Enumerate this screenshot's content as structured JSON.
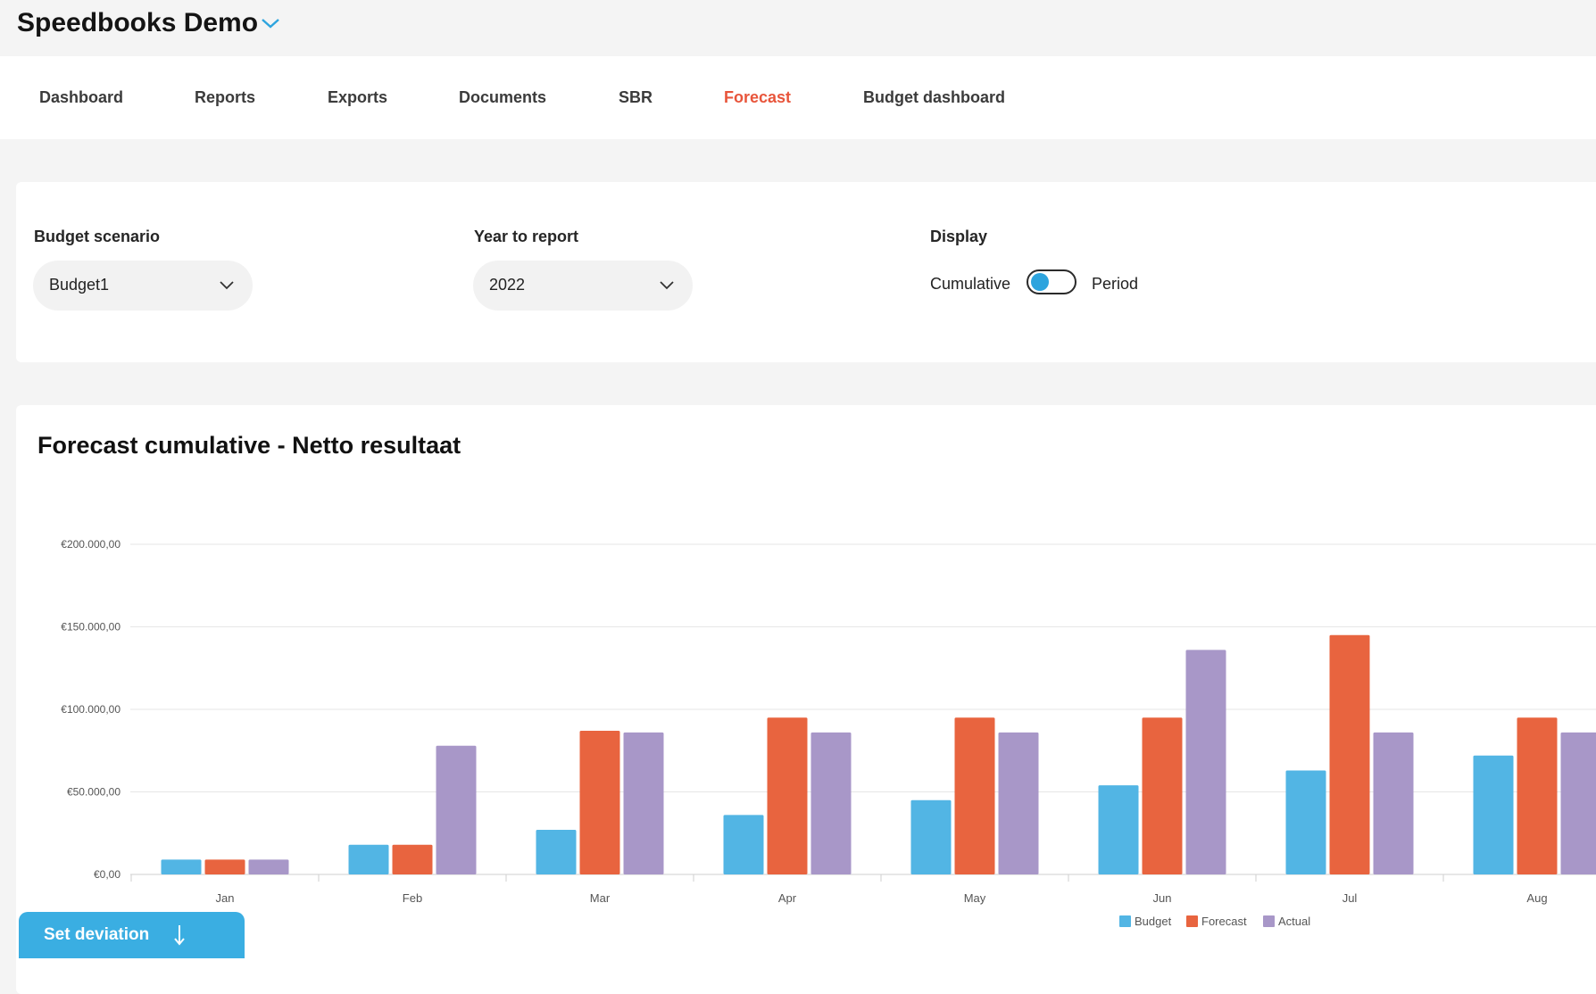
{
  "app": {
    "title": "Speedbooks Demo"
  },
  "nav": {
    "items": [
      {
        "label": "Dashboard"
      },
      {
        "label": "Reports"
      },
      {
        "label": "Exports"
      },
      {
        "label": "Documents"
      },
      {
        "label": "SBR"
      },
      {
        "label": "Forecast",
        "active": true
      },
      {
        "label": "Budget dashboard"
      }
    ]
  },
  "filters": {
    "budget_scenario": {
      "label": "Budget scenario",
      "value": "Budget1"
    },
    "year": {
      "label": "Year to report",
      "value": "2022"
    },
    "display": {
      "label": "Display",
      "left": "Cumulative",
      "right": "Period",
      "selected": "Cumulative"
    }
  },
  "chart": {
    "title": "Forecast cumulative - Netto resultaat"
  },
  "chart_data": {
    "type": "bar",
    "categories": [
      "Jan",
      "Feb",
      "Mar",
      "Apr",
      "May",
      "Jun",
      "Jul",
      "Aug"
    ],
    "series": [
      {
        "name": "Budget",
        "color": "#52b5e4",
        "values": [
          9000,
          18000,
          27000,
          36000,
          45000,
          54000,
          63000,
          72000
        ]
      },
      {
        "name": "Forecast",
        "color": "#e8643f",
        "values": [
          9000,
          18000,
          87000,
          95000,
          95000,
          95000,
          145000,
          95000
        ]
      },
      {
        "name": "Actual",
        "color": "#a897c8",
        "values": [
          9000,
          78000,
          86000,
          86000,
          86000,
          136000,
          86000,
          86000
        ]
      }
    ],
    "ylim": [
      0,
      200000
    ],
    "yticks": [
      "€0,00",
      "€50.000,00",
      "€100.000,00",
      "€150.000,00",
      "€200.000,00"
    ],
    "ytick_values": [
      0,
      50000,
      100000,
      150000,
      200000
    ],
    "grid": true,
    "legend": "bottom-center"
  },
  "actions": {
    "set_deviation": "Set deviation"
  },
  "colors": {
    "accent": "#e8553b",
    "primary": "#3aaee2"
  },
  "icons": {
    "app_menu": "chevron-down-icon",
    "select": "chevron-down-icon",
    "deviation": "arrow-down-icon"
  }
}
